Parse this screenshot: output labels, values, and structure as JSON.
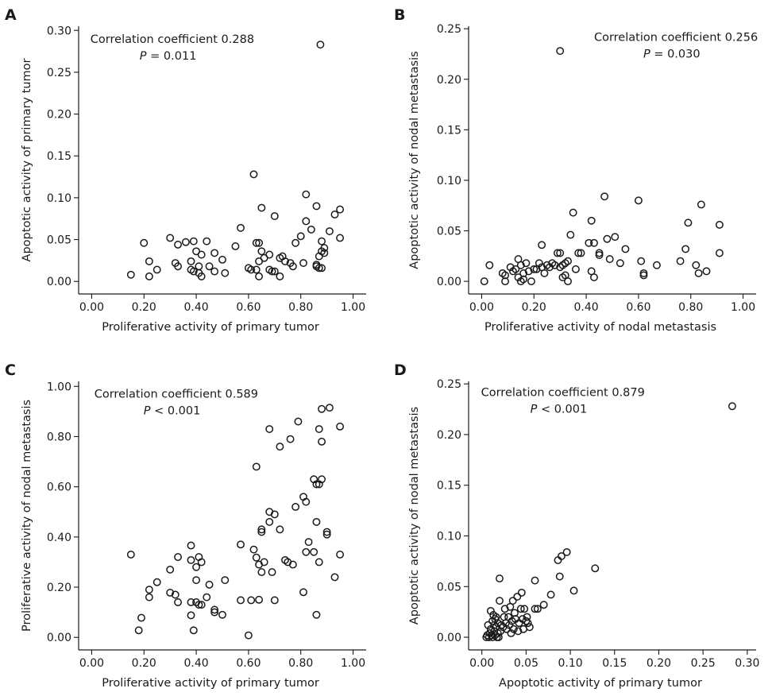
{
  "chart_data": [
    {
      "type": "scatter",
      "panel_label": "A",
      "xlabel": "Proliferative activity of primary tumor",
      "ylabel": "Apoptotic activity of primary tumor",
      "xlim": [
        -0.05,
        1.05
      ],
      "ylim": [
        -0.015,
        0.305
      ],
      "xticks": [
        0,
        0.2,
        0.4,
        0.6,
        0.8,
        1.0
      ],
      "xtick_labels": [
        "0.00",
        "0.20",
        "0.40",
        "0.60",
        "0.80",
        "1.00"
      ],
      "yticks": [
        0,
        0.05,
        0.1,
        0.15,
        0.2,
        0.25,
        0.3
      ],
      "ytick_labels": [
        "0.00",
        "0.05",
        "0.10",
        "0.15",
        "0.20",
        "0.25",
        "0.30"
      ],
      "annotation": {
        "line1": "Correlation coefficient 0.288",
        "p_symbol": "P",
        "p_text": " = 0.011"
      },
      "annotation_anchor": {
        "x": -0.005,
        "y": 0.285
      },
      "grid": false,
      "points": [
        [
          0.15,
          0.008
        ],
        [
          0.2,
          0.046
        ],
        [
          0.22,
          0.024
        ],
        [
          0.22,
          0.006
        ],
        [
          0.25,
          0.014
        ],
        [
          0.3,
          0.052
        ],
        [
          0.32,
          0.022
        ],
        [
          0.33,
          0.044
        ],
        [
          0.33,
          0.018
        ],
        [
          0.36,
          0.047
        ],
        [
          0.38,
          0.014
        ],
        [
          0.38,
          0.024
        ],
        [
          0.39,
          0.048
        ],
        [
          0.39,
          0.012
        ],
        [
          0.4,
          0.036
        ],
        [
          0.41,
          0.018
        ],
        [
          0.41,
          0.01
        ],
        [
          0.42,
          0.006
        ],
        [
          0.42,
          0.032
        ],
        [
          0.44,
          0.048
        ],
        [
          0.45,
          0.018
        ],
        [
          0.47,
          0.034
        ],
        [
          0.47,
          0.012
        ],
        [
          0.5,
          0.026
        ],
        [
          0.51,
          0.01
        ],
        [
          0.55,
          0.042
        ],
        [
          0.57,
          0.064
        ],
        [
          0.6,
          0.016
        ],
        [
          0.61,
          0.014
        ],
        [
          0.62,
          0.128
        ],
        [
          0.63,
          0.014
        ],
        [
          0.63,
          0.046
        ],
        [
          0.64,
          0.046
        ],
        [
          0.64,
          0.024
        ],
        [
          0.64,
          0.006
        ],
        [
          0.65,
          0.088
        ],
        [
          0.65,
          0.036
        ],
        [
          0.66,
          0.028
        ],
        [
          0.68,
          0.032
        ],
        [
          0.68,
          0.014
        ],
        [
          0.69,
          0.012
        ],
        [
          0.7,
          0.078
        ],
        [
          0.7,
          0.012
        ],
        [
          0.72,
          0.006
        ],
        [
          0.72,
          0.028
        ],
        [
          0.73,
          0.03
        ],
        [
          0.74,
          0.024
        ],
        [
          0.76,
          0.022
        ],
        [
          0.77,
          0.018
        ],
        [
          0.78,
          0.046
        ],
        [
          0.8,
          0.054
        ],
        [
          0.81,
          0.022
        ],
        [
          0.82,
          0.072
        ],
        [
          0.82,
          0.104
        ],
        [
          0.84,
          0.062
        ],
        [
          0.86,
          0.09
        ],
        [
          0.86,
          0.02
        ],
        [
          0.86,
          0.018
        ],
        [
          0.87,
          0.03
        ],
        [
          0.87,
          0.016
        ],
        [
          0.88,
          0.048
        ],
        [
          0.88,
          0.036
        ],
        [
          0.88,
          0.016
        ],
        [
          0.89,
          0.034
        ],
        [
          0.89,
          0.04
        ],
        [
          0.91,
          0.06
        ],
        [
          0.93,
          0.08
        ],
        [
          0.95,
          0.086
        ],
        [
          0.95,
          0.052
        ],
        [
          0.875,
          0.283
        ]
      ]
    },
    {
      "type": "scatter",
      "panel_label": "B",
      "xlabel": "Proliferative activity of nodal metastasis",
      "ylabel": "Apoptotic activity of nodal metastasis",
      "xlim": [
        -0.05,
        1.05
      ],
      "ylim": [
        -0.0125,
        0.2525
      ],
      "xticks": [
        0,
        0.2,
        0.4,
        0.6,
        0.8,
        1.0
      ],
      "xtick_labels": [
        "0.00",
        "0.20",
        "0.40",
        "0.60",
        "0.80",
        "1.00"
      ],
      "yticks": [
        0,
        0.05,
        0.1,
        0.15,
        0.2,
        0.25
      ],
      "ytick_labels": [
        "0.00",
        "0.05",
        "0.10",
        "0.15",
        "0.20",
        "0.25"
      ],
      "annotation": {
        "line1": "Correlation coefficient 0.256",
        "p_symbol": "P",
        "p_text": " = 0.030"
      },
      "annotation_anchor": {
        "x": 0.43,
        "y": 0.238
      },
      "grid": false,
      "points": [
        [
          0.01,
          0.0
        ],
        [
          0.03,
          0.016
        ],
        [
          0.08,
          0.008
        ],
        [
          0.09,
          0.0
        ],
        [
          0.09,
          0.006
        ],
        [
          0.11,
          0.014
        ],
        [
          0.12,
          0.01
        ],
        [
          0.13,
          0.012
        ],
        [
          0.14,
          0.022
        ],
        [
          0.14,
          0.004
        ],
        [
          0.15,
          0.0
        ],
        [
          0.15,
          0.016
        ],
        [
          0.16,
          0.002
        ],
        [
          0.16,
          0.008
        ],
        [
          0.17,
          0.018
        ],
        [
          0.18,
          0.01
        ],
        [
          0.19,
          0.0
        ],
        [
          0.2,
          0.012
        ],
        [
          0.21,
          0.012
        ],
        [
          0.22,
          0.018
        ],
        [
          0.23,
          0.036
        ],
        [
          0.23,
          0.014
        ],
        [
          0.24,
          0.008
        ],
        [
          0.25,
          0.016
        ],
        [
          0.26,
          0.014
        ],
        [
          0.27,
          0.018
        ],
        [
          0.28,
          0.016
        ],
        [
          0.29,
          0.028
        ],
        [
          0.3,
          0.028
        ],
        [
          0.3,
          0.014
        ],
        [
          0.31,
          0.004
        ],
        [
          0.31,
          0.016
        ],
        [
          0.32,
          0.018
        ],
        [
          0.32,
          0.006
        ],
        [
          0.33,
          0.02
        ],
        [
          0.33,
          0.0
        ],
        [
          0.34,
          0.046
        ],
        [
          0.35,
          0.068
        ],
        [
          0.36,
          0.012
        ],
        [
          0.37,
          0.028
        ],
        [
          0.38,
          0.028
        ],
        [
          0.41,
          0.038
        ],
        [
          0.42,
          0.06
        ],
        [
          0.42,
          0.01
        ],
        [
          0.43,
          0.038
        ],
        [
          0.43,
          0.004
        ],
        [
          0.45,
          0.026
        ],
        [
          0.45,
          0.028
        ],
        [
          0.47,
          0.084
        ],
        [
          0.48,
          0.042
        ],
        [
          0.49,
          0.022
        ],
        [
          0.51,
          0.044
        ],
        [
          0.53,
          0.018
        ],
        [
          0.55,
          0.032
        ],
        [
          0.6,
          0.08
        ],
        [
          0.61,
          0.02
        ],
        [
          0.62,
          0.006
        ],
        [
          0.62,
          0.008
        ],
        [
          0.67,
          0.016
        ],
        [
          0.76,
          0.02
        ],
        [
          0.78,
          0.032
        ],
        [
          0.79,
          0.058
        ],
        [
          0.82,
          0.016
        ],
        [
          0.83,
          0.008
        ],
        [
          0.84,
          0.076
        ],
        [
          0.86,
          0.01
        ],
        [
          0.91,
          0.028
        ],
        [
          0.91,
          0.056
        ],
        [
          0.3,
          0.228
        ]
      ]
    },
    {
      "type": "scatter",
      "panel_label": "C",
      "xlabel": "Proliferative activity of primary tumor",
      "ylabel": "Proliferative activity of nodal metastasis",
      "xlim": [
        -0.05,
        1.05
      ],
      "ylim": [
        -0.05,
        1.02
      ],
      "xticks": [
        0,
        0.2,
        0.4,
        0.6,
        0.8,
        1.0
      ],
      "xtick_labels": [
        "0.00",
        "0.20",
        "0.40",
        "0.60",
        "0.80",
        "1.00"
      ],
      "yticks": [
        0,
        0.2,
        0.4,
        0.6,
        0.8,
        1.0
      ],
      "ytick_labels": [
        "0.00",
        "0.20",
        "0.40",
        "0.60",
        "0.80",
        "1.00"
      ],
      "annotation": {
        "line1": "Correlation coefficient 0.589",
        "p_symbol": "P",
        "p_text": " < 0.001"
      },
      "annotation_anchor": {
        "x": 0.01,
        "y": 0.955
      },
      "grid": false,
      "points": [
        [
          0.15,
          0.33
        ],
        [
          0.18,
          0.028
        ],
        [
          0.19,
          0.078
        ],
        [
          0.22,
          0.19
        ],
        [
          0.22,
          0.16
        ],
        [
          0.25,
          0.22
        ],
        [
          0.3,
          0.27
        ],
        [
          0.3,
          0.178
        ],
        [
          0.32,
          0.17
        ],
        [
          0.33,
          0.32
        ],
        [
          0.33,
          0.14
        ],
        [
          0.38,
          0.366
        ],
        [
          0.38,
          0.308
        ],
        [
          0.38,
          0.14
        ],
        [
          0.38,
          0.088
        ],
        [
          0.39,
          0.028
        ],
        [
          0.4,
          0.28
        ],
        [
          0.4,
          0.228
        ],
        [
          0.4,
          0.14
        ],
        [
          0.41,
          0.32
        ],
        [
          0.41,
          0.13
        ],
        [
          0.42,
          0.3
        ],
        [
          0.42,
          0.13
        ],
        [
          0.44,
          0.16
        ],
        [
          0.45,
          0.21
        ],
        [
          0.47,
          0.11
        ],
        [
          0.47,
          0.1
        ],
        [
          0.5,
          0.09
        ],
        [
          0.51,
          0.228
        ],
        [
          0.57,
          0.148
        ],
        [
          0.57,
          0.37
        ],
        [
          0.6,
          0.008
        ],
        [
          0.61,
          0.148
        ],
        [
          0.62,
          0.35
        ],
        [
          0.63,
          0.68
        ],
        [
          0.63,
          0.318
        ],
        [
          0.64,
          0.15
        ],
        [
          0.64,
          0.29
        ],
        [
          0.65,
          0.42
        ],
        [
          0.65,
          0.43
        ],
        [
          0.65,
          0.26
        ],
        [
          0.66,
          0.3
        ],
        [
          0.68,
          0.5
        ],
        [
          0.68,
          0.46
        ],
        [
          0.68,
          0.83
        ],
        [
          0.69,
          0.26
        ],
        [
          0.7,
          0.148
        ],
        [
          0.7,
          0.49
        ],
        [
          0.72,
          0.76
        ],
        [
          0.72,
          0.43
        ],
        [
          0.74,
          0.308
        ],
        [
          0.75,
          0.3
        ],
        [
          0.76,
          0.79
        ],
        [
          0.77,
          0.29
        ],
        [
          0.78,
          0.52
        ],
        [
          0.79,
          0.86
        ],
        [
          0.81,
          0.18
        ],
        [
          0.81,
          0.56
        ],
        [
          0.82,
          0.34
        ],
        [
          0.82,
          0.54
        ],
        [
          0.83,
          0.38
        ],
        [
          0.85,
          0.63
        ],
        [
          0.85,
          0.34
        ],
        [
          0.86,
          0.46
        ],
        [
          0.86,
          0.09
        ],
        [
          0.86,
          0.61
        ],
        [
          0.87,
          0.61
        ],
        [
          0.87,
          0.3
        ],
        [
          0.87,
          0.83
        ],
        [
          0.88,
          0.78
        ],
        [
          0.88,
          0.91
        ],
        [
          0.88,
          0.63
        ],
        [
          0.9,
          0.41
        ],
        [
          0.9,
          0.42
        ],
        [
          0.91,
          0.915
        ],
        [
          0.93,
          0.24
        ],
        [
          0.95,
          0.84
        ],
        [
          0.95,
          0.33
        ]
      ]
    },
    {
      "type": "scatter",
      "panel_label": "D",
      "xlabel": "Apoptotic activity of primary tumor",
      "ylabel": "Apoptotic activity of nodal metastasis",
      "xlim": [
        -0.015,
        0.31
      ],
      "ylim": [
        -0.0125,
        0.2525
      ],
      "xticks": [
        0,
        0.05,
        0.1,
        0.15,
        0.2,
        0.25,
        0.3
      ],
      "xtick_labels": [
        "0.00",
        "0.05",
        "0.10",
        "0.15",
        "0.20",
        "0.25",
        "0.30"
      ],
      "yticks": [
        0,
        0.05,
        0.1,
        0.15,
        0.2,
        0.25
      ],
      "ytick_labels": [
        "0.00",
        "0.05",
        "0.10",
        "0.15",
        "0.20",
        "0.25"
      ],
      "annotation": {
        "line1": "Correlation coefficient 0.879",
        "p_symbol": "P",
        "p_text": " < 0.001"
      },
      "annotation_anchor": {
        "x": -0.001,
        "y": 0.238
      },
      "grid": false,
      "points": [
        [
          0.005,
          0.0
        ],
        [
          0.006,
          0.002
        ],
        [
          0.007,
          0.012
        ],
        [
          0.008,
          0.0
        ],
        [
          0.009,
          0.004
        ],
        [
          0.01,
          0.008
        ],
        [
          0.01,
          0.026
        ],
        [
          0.011,
          0.002
        ],
        [
          0.012,
          0.016
        ],
        [
          0.012,
          0.0
        ],
        [
          0.013,
          0.022
        ],
        [
          0.014,
          0.006
        ],
        [
          0.014,
          0.012
        ],
        [
          0.015,
          0.018
        ],
        [
          0.015,
          0.002
        ],
        [
          0.016,
          0.01
        ],
        [
          0.016,
          0.02
        ],
        [
          0.017,
          0.0
        ],
        [
          0.018,
          0.014
        ],
        [
          0.018,
          0.004
        ],
        [
          0.019,
          0.0
        ],
        [
          0.02,
          0.058
        ],
        [
          0.02,
          0.036
        ],
        [
          0.021,
          0.006
        ],
        [
          0.022,
          0.012
        ],
        [
          0.024,
          0.01
        ],
        [
          0.025,
          0.02
        ],
        [
          0.026,
          0.028
        ],
        [
          0.027,
          0.014
        ],
        [
          0.028,
          0.008
        ],
        [
          0.03,
          0.02
        ],
        [
          0.031,
          0.012
        ],
        [
          0.032,
          0.03
        ],
        [
          0.033,
          0.004
        ],
        [
          0.034,
          0.016
        ],
        [
          0.035,
          0.036
        ],
        [
          0.036,
          0.008
        ],
        [
          0.037,
          0.024
        ],
        [
          0.038,
          0.018
        ],
        [
          0.04,
          0.04
        ],
        [
          0.041,
          0.006
        ],
        [
          0.042,
          0.014
        ],
        [
          0.044,
          0.028
        ],
        [
          0.045,
          0.044
        ],
        [
          0.046,
          0.018
        ],
        [
          0.047,
          0.008
        ],
        [
          0.048,
          0.028
        ],
        [
          0.05,
          0.016
        ],
        [
          0.051,
          0.02
        ],
        [
          0.052,
          0.014
        ],
        [
          0.054,
          0.01
        ],
        [
          0.06,
          0.028
        ],
        [
          0.06,
          0.056
        ],
        [
          0.063,
          0.028
        ],
        [
          0.07,
          0.032
        ],
        [
          0.078,
          0.042
        ],
        [
          0.086,
          0.076
        ],
        [
          0.088,
          0.06
        ],
        [
          0.09,
          0.08
        ],
        [
          0.096,
          0.084
        ],
        [
          0.104,
          0.046
        ],
        [
          0.128,
          0.068
        ],
        [
          0.283,
          0.228
        ]
      ]
    }
  ]
}
